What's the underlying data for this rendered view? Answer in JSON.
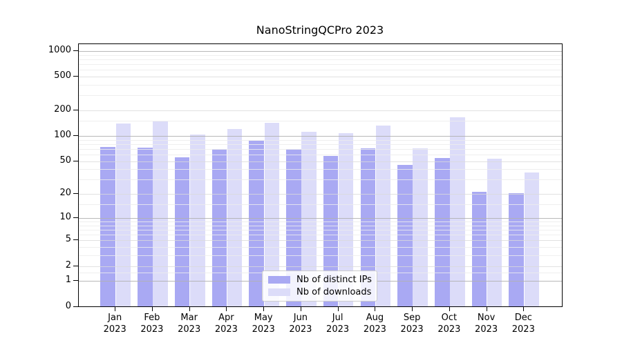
{
  "chart_data": {
    "type": "bar",
    "title": "NanoStringQCPro 2023",
    "categories": [
      "Jan",
      "Feb",
      "Mar",
      "Apr",
      "May",
      "Jun",
      "Jul",
      "Aug",
      "Sep",
      "Oct",
      "Nov",
      "Dec"
    ],
    "category_year": "2023",
    "series": [
      {
        "name": "Nb of distinct IPs",
        "color": "#a9a9f3",
        "values": [
          73,
          71,
          55,
          68,
          86,
          69,
          57,
          70,
          44,
          54,
          21,
          20
        ]
      },
      {
        "name": "Nb of downloads",
        "color": "#dcdcf9",
        "values": [
          137,
          145,
          102,
          118,
          140,
          110,
          105,
          130,
          70,
          163,
          53,
          36
        ]
      }
    ],
    "xlabel": "",
    "ylabel": "",
    "y_scale": "log10(1+x)",
    "y_ticks": [
      0,
      1,
      2,
      5,
      10,
      20,
      50,
      100,
      200,
      500,
      1000
    ],
    "y_minor_ticks": [
      1.5,
      3,
      4,
      6,
      7,
      8,
      9,
      15,
      30,
      40,
      60,
      70,
      80,
      90,
      150,
      300,
      400,
      600,
      700,
      800,
      900
    ],
    "ylim": [
      0,
      1200
    ],
    "grid": true,
    "legend_position": "lower center inside"
  },
  "colors": {
    "major_grid": "#b0b0b0",
    "labeled_grid": "#d9d9d9",
    "minor_grid": "#ececec",
    "spine": "#000000",
    "legend_border": "#cccccc",
    "background": "#ffffff"
  }
}
